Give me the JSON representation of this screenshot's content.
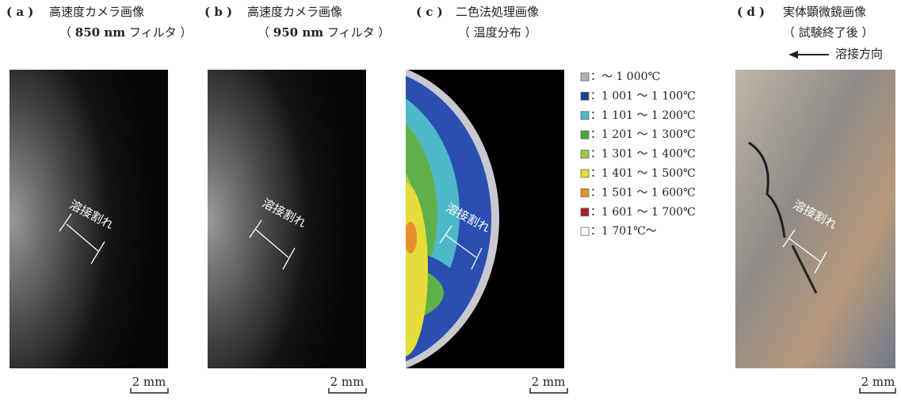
{
  "panels": [
    {
      "label": "( a )",
      "title": "高速度カメラ画像",
      "sub_open": "（",
      "sub_bold": "850 nm",
      "sub_close": "フィルタ ）",
      "annotation": "溶接割れ",
      "scale": "2 mm"
    },
    {
      "label": "( b )",
      "title": "高速度カメラ画像",
      "sub_open": "（",
      "sub_bold": "950 nm",
      "sub_close": "フィルタ ）",
      "annotation": "溶接割れ",
      "scale": "2 mm"
    },
    {
      "label": "( c )",
      "title": "二色法処理画像",
      "subtitle": "（ 温度分布 ）",
      "annotation": "溶接割れ",
      "scale": "2 mm"
    },
    {
      "label": "( d )",
      "title": "実体顕微鏡画像",
      "subtitle": "（ 試験終了後 ）",
      "annotation": "溶接割れ",
      "scale": "2 mm",
      "direction": "溶接方向"
    }
  ],
  "legend": [
    {
      "color": "#b3b3b3",
      "label": "：～ 1 000℃"
    },
    {
      "color": "#1f3f9a",
      "label": "：1 001 ～ 1 100℃"
    },
    {
      "color": "#4fb8c8",
      "label": "：1 101 ～ 1 200℃"
    },
    {
      "color": "#4aa83a",
      "label": "：1 201 ～ 1 300℃"
    },
    {
      "color": "#9ccc3c",
      "label": "：1 301 ～ 1 400℃"
    },
    {
      "color": "#e6dc3a",
      "label": "：1 401 ～ 1 500℃"
    },
    {
      "color": "#e8902c",
      "label": "：1 501 ～ 1 600℃"
    },
    {
      "color": "#a8202a",
      "label": "：1 601 ～ 1 700℃"
    },
    {
      "color": "#ffffff",
      "label": "：1 701℃～"
    }
  ]
}
